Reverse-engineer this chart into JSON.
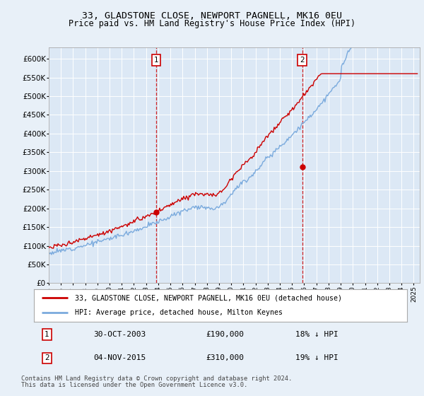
{
  "title": "33, GLADSTONE CLOSE, NEWPORT PAGNELL, MK16 0EU",
  "subtitle": "Price paid vs. HM Land Registry's House Price Index (HPI)",
  "background_color": "#e8f0f8",
  "plot_bg_color": "#dce8f5",
  "ylim": [
    0,
    630000
  ],
  "yticks": [
    0,
    50000,
    100000,
    150000,
    200000,
    250000,
    300000,
    350000,
    400000,
    450000,
    500000,
    550000,
    600000
  ],
  "ytick_labels": [
    "£0",
    "£50K",
    "£100K",
    "£150K",
    "£200K",
    "£250K",
    "£300K",
    "£350K",
    "£400K",
    "£450K",
    "£500K",
    "£550K",
    "£600K"
  ],
  "sale1_date": 2003.83,
  "sale1_price": 190000,
  "sale1_label": "1",
  "sale1_date_str": "30-OCT-2003",
  "sale1_pct": "18% ↓ HPI",
  "sale2_date": 2015.84,
  "sale2_price": 310000,
  "sale2_label": "2",
  "sale2_date_str": "04-NOV-2015",
  "sale2_pct": "19% ↓ HPI",
  "line_color_property": "#cc0000",
  "line_color_hpi": "#7aaadd",
  "legend_label_property": "33, GLADSTONE CLOSE, NEWPORT PAGNELL, MK16 0EU (detached house)",
  "legend_label_hpi": "HPI: Average price, detached house, Milton Keynes",
  "footer1": "Contains HM Land Registry data © Crown copyright and database right 2024.",
  "footer2": "This data is licensed under the Open Government Licence v3.0."
}
